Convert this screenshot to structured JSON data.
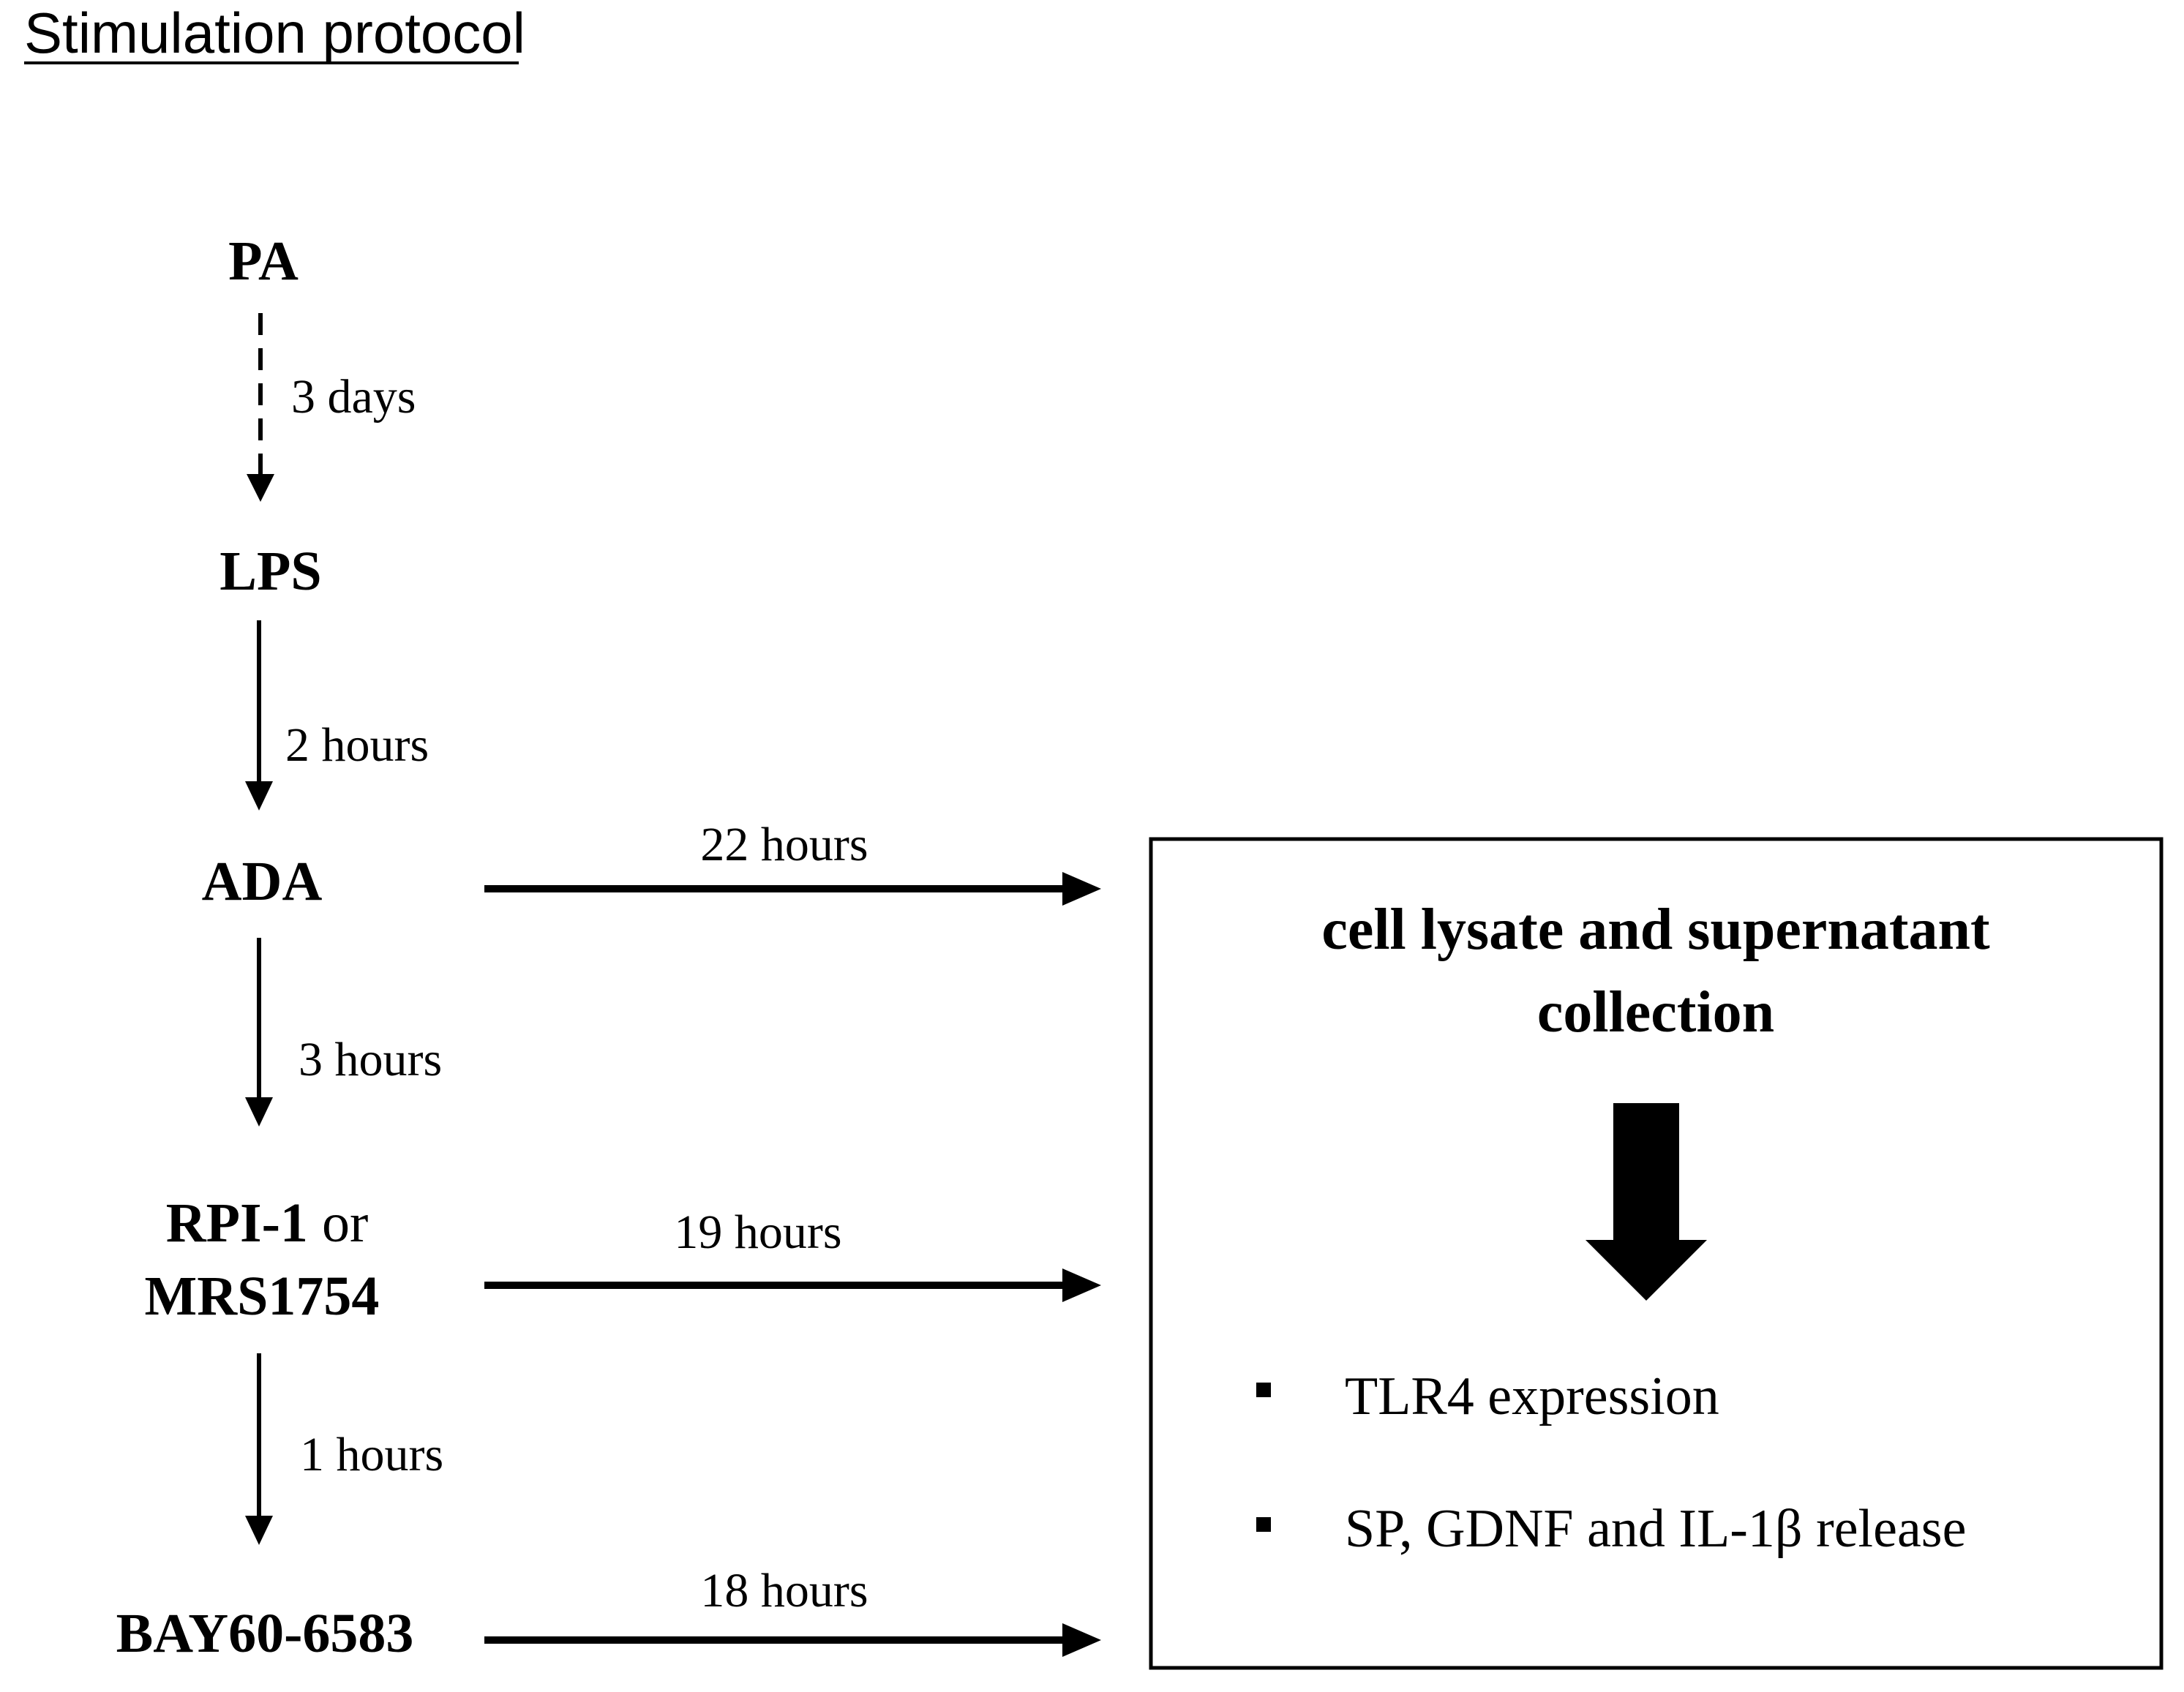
{
  "title": "Stimulation protocol",
  "steps": {
    "pa": "PA",
    "lps": "LPS",
    "ada": "ADA",
    "rpi": "RPI-1",
    "or": "or",
    "mrs": "MRS1754",
    "bay": "BAY60-6583"
  },
  "intervals": {
    "pa_to_lps": "3 days",
    "lps_to_ada": "2 hours",
    "ada_to_rpi": "3 hours",
    "rpi_to_bay": "1 hours"
  },
  "incubations": {
    "ada": "22 hours",
    "rpi": "19 hours",
    "bay": "18 hours"
  },
  "collection": {
    "heading_line1": "cell lysate and supernatant",
    "heading_line2": "collection",
    "readouts": [
      "TLR4 expression",
      "SP, GDNF and IL-1β release"
    ]
  },
  "colors": {
    "ink": "#000000",
    "background": "#ffffff"
  }
}
